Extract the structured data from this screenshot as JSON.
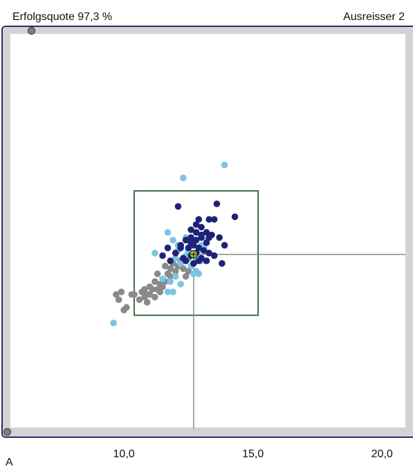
{
  "header": {
    "success_rate": "Erfolgsquote 97,3 %",
    "outliers": "Ausreisser 2"
  },
  "corner_label": "A",
  "colors": {
    "frame_border": "#2a2d6e",
    "frame_fill": "#d3d3d3",
    "tolerance_box": "#3f6e45",
    "crosshair": "#8a8a8a",
    "mean_marker": "#a8c832"
  },
  "chart_data": {
    "type": "scatter",
    "title": "",
    "xlabel": "",
    "ylabel": "",
    "xlim": [
      5.2,
      21.2
    ],
    "ylim": [
      5.7,
      21.4
    ],
    "x_ticks": [
      {
        "value": 10.0,
        "label": "10,0"
      },
      {
        "value": 15.0,
        "label": "15,0"
      },
      {
        "value": 20.0,
        "label": "20,0"
      }
    ],
    "tolerance_box": {
      "x": [
        10.4,
        15.2
      ],
      "y": [
        10.3,
        15.1
      ]
    },
    "mean": {
      "x": 12.7,
      "y": 12.65
    },
    "series": [
      {
        "color": "#8a8a8a",
        "points": [
          [
            9.7,
            11.1
          ],
          [
            9.9,
            11.2
          ],
          [
            9.8,
            10.9
          ],
          [
            10.0,
            10.5
          ],
          [
            10.1,
            10.6
          ],
          [
            10.3,
            11.1
          ],
          [
            10.4,
            11.1
          ],
          [
            10.6,
            10.9
          ],
          [
            10.7,
            11.2
          ],
          [
            10.8,
            11.0
          ],
          [
            10.9,
            10.8
          ],
          [
            11.0,
            11.4
          ],
          [
            11.1,
            11.3
          ],
          [
            11.2,
            11.6
          ],
          [
            11.3,
            11.3
          ],
          [
            11.4,
            11.5
          ],
          [
            11.3,
            11.9
          ],
          [
            11.5,
            11.4
          ],
          [
            11.5,
            11.7
          ],
          [
            11.6,
            11.6
          ],
          [
            11.7,
            11.9
          ],
          [
            11.8,
            11.8
          ],
          [
            11.8,
            12.1
          ],
          [
            11.9,
            12.3
          ],
          [
            12.0,
            12.0
          ],
          [
            12.1,
            12.2
          ],
          [
            12.2,
            12.4
          ],
          [
            12.3,
            12.1
          ],
          [
            12.4,
            11.8
          ],
          [
            12.5,
            12.0
          ],
          [
            12.3,
            12.5
          ],
          [
            11.6,
            12.2
          ],
          [
            11.0,
            11.1
          ],
          [
            11.2,
            11.0
          ],
          [
            10.9,
            11.1
          ],
          [
            12.5,
            12.5
          ],
          [
            11.4,
            11.2
          ],
          [
            10.8,
            11.3
          ]
        ]
      },
      {
        "color": "#7ec3e3",
        "points": [
          [
            13.9,
            16.1
          ],
          [
            12.3,
            15.6
          ],
          [
            9.6,
            10.0
          ],
          [
            11.7,
            13.5
          ],
          [
            11.2,
            12.7
          ],
          [
            11.9,
            13.2
          ],
          [
            12.1,
            13.0
          ],
          [
            12.0,
            12.5
          ],
          [
            12.2,
            12.3
          ],
          [
            12.4,
            12.6
          ],
          [
            12.6,
            12.2
          ],
          [
            12.7,
            11.9
          ],
          [
            12.8,
            12.5
          ],
          [
            12.9,
            12.8
          ],
          [
            13.0,
            13.0
          ],
          [
            13.2,
            13.2
          ],
          [
            12.8,
            12.0
          ],
          [
            11.8,
            11.6
          ],
          [
            11.5,
            11.7
          ],
          [
            12.0,
            11.8
          ],
          [
            11.9,
            11.2
          ],
          [
            12.2,
            11.5
          ],
          [
            12.5,
            12.8
          ],
          [
            12.6,
            13.1
          ],
          [
            13.0,
            12.4
          ],
          [
            11.7,
            11.2
          ],
          [
            12.9,
            11.9
          ],
          [
            12.1,
            12.8
          ],
          [
            13.1,
            12.9
          ],
          [
            12.4,
            13.3
          ]
        ]
      },
      {
        "color": "#1f2378",
        "points": [
          [
            13.6,
            14.6
          ],
          [
            14.3,
            14.1
          ],
          [
            12.1,
            14.5
          ],
          [
            12.9,
            14.0
          ],
          [
            13.3,
            14.0
          ],
          [
            13.5,
            14.0
          ],
          [
            12.6,
            13.6
          ],
          [
            12.8,
            13.8
          ],
          [
            13.0,
            13.7
          ],
          [
            13.2,
            13.5
          ],
          [
            13.4,
            13.4
          ],
          [
            13.7,
            13.3
          ],
          [
            13.9,
            13.0
          ],
          [
            12.4,
            13.2
          ],
          [
            12.6,
            13.3
          ],
          [
            12.8,
            13.2
          ],
          [
            13.0,
            13.3
          ],
          [
            13.2,
            13.1
          ],
          [
            12.5,
            12.9
          ],
          [
            12.7,
            13.0
          ],
          [
            12.9,
            12.9
          ],
          [
            13.1,
            12.8
          ],
          [
            13.3,
            12.7
          ],
          [
            11.7,
            12.9
          ],
          [
            12.0,
            12.7
          ],
          [
            12.2,
            12.9
          ],
          [
            12.3,
            12.5
          ],
          [
            12.6,
            12.6
          ],
          [
            12.8,
            12.7
          ],
          [
            13.0,
            12.5
          ],
          [
            13.2,
            12.4
          ],
          [
            11.5,
            12.6
          ],
          [
            12.4,
            12.4
          ],
          [
            13.8,
            12.3
          ],
          [
            12.7,
            12.3
          ],
          [
            12.9,
            12.4
          ],
          [
            13.5,
            12.6
          ],
          [
            12.8,
            13.5
          ],
          [
            13.0,
            13.4
          ],
          [
            12.6,
            13.1
          ],
          [
            13.3,
            13.3
          ],
          [
            12.2,
            13.0
          ],
          [
            11.8,
            12.4
          ]
        ]
      }
    ]
  }
}
